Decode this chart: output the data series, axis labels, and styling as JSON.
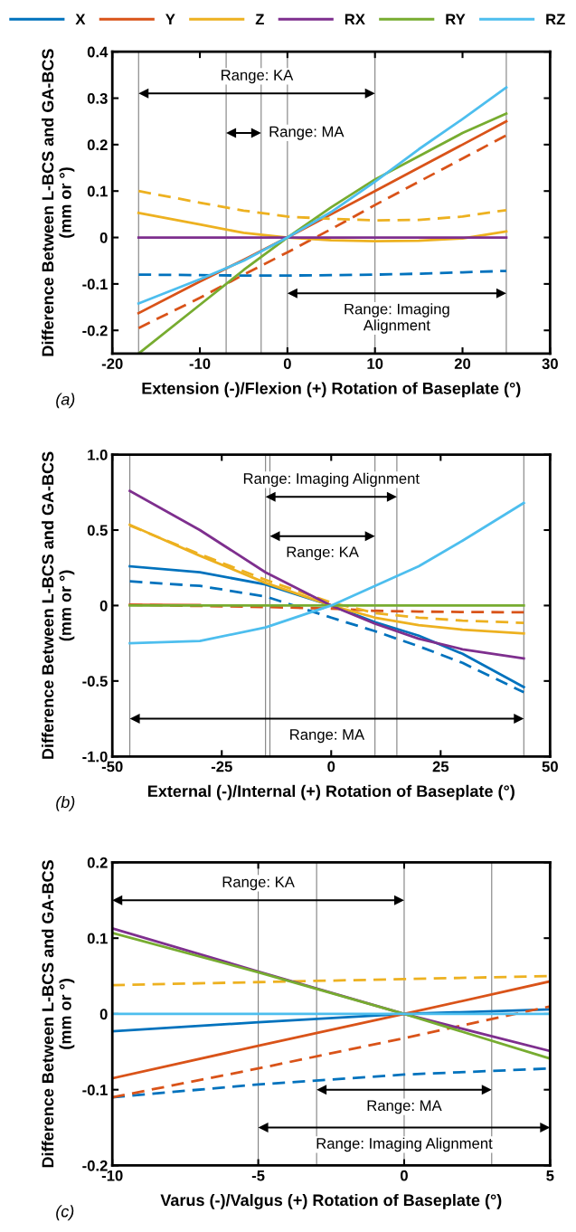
{
  "chart_data": [
    {
      "type": "line",
      "xlabel": "Extension (-)/Flexion (+) Rotation of Baseplate (°)",
      "ylabel": "Difference Between L-BCS and GA-BCS\n(mm or °)",
      "xlim": [
        -20,
        30
      ],
      "xticks": [
        -20,
        -10,
        0,
        10,
        20,
        30
      ],
      "ylim": [
        -0.25,
        0.4
      ],
      "yticks": [
        -0.2,
        -0.1,
        0,
        0.1,
        0.2,
        0.3,
        0.4
      ],
      "grid": false,
      "legend": "top",
      "annotations": [
        "(a)",
        "Range: KA",
        "Range: MA",
        "Range: Imaging\nAlignment"
      ],
      "x": [
        -17,
        -10,
        -5,
        0,
        5,
        10,
        15,
        20,
        25
      ],
      "series": [
        {
          "name": "X",
          "color": "#0072bd",
          "values": [
            null,
            null,
            null,
            null,
            null,
            null,
            null,
            null,
            null
          ]
        },
        {
          "color": "#0072bd",
          "line_style": "dashed",
          "values": [
            -0.08,
            -0.081,
            -0.082,
            -0.082,
            -0.081,
            -0.08,
            -0.078,
            -0.075,
            -0.072
          ]
        },
        {
          "name": "Y",
          "color": "#d95319",
          "values": [
            -0.163,
            -0.095,
            -0.048,
            0,
            0.05,
            0.1,
            0.15,
            0.2,
            0.25
          ]
        },
        {
          "color": "#d95319",
          "line_style": "dashed",
          "values": [
            -0.195,
            -0.13,
            -0.08,
            -0.032,
            0.018,
            0.07,
            0.12,
            0.17,
            0.22
          ]
        },
        {
          "name": "Z",
          "color": "#edb120",
          "values": [
            0.053,
            0.028,
            0.01,
            0,
            -0.006,
            -0.008,
            -0.007,
            -0.002,
            0.013
          ]
        },
        {
          "color": "#edb120",
          "line_style": "dashed",
          "values": [
            0.1,
            0.075,
            0.058,
            0.045,
            0.04,
            0.037,
            0.038,
            0.045,
            0.059
          ]
        },
        {
          "name": "RX",
          "color": "#7e2f8e",
          "values": [
            0,
            0,
            0,
            0,
            0,
            0,
            0,
            0,
            0
          ]
        },
        {
          "name": "RY",
          "color": "#77ac30",
          "values": [
            -0.25,
            -0.145,
            -0.07,
            0,
            0.065,
            0.125,
            0.175,
            0.225,
            0.267
          ]
        },
        {
          "name": "RZ",
          "color": "#4dbeee",
          "values": [
            -0.142,
            -0.09,
            -0.05,
            0,
            0.055,
            0.12,
            0.19,
            0.255,
            0.323
          ]
        }
      ],
      "ref_lines": [
        {
          "axis": "x",
          "value": -17,
          "color": "#808080"
        },
        {
          "axis": "x",
          "value": -7,
          "color": "#808080"
        },
        {
          "axis": "x",
          "value": -3,
          "color": "#808080"
        },
        {
          "axis": "x",
          "value": 0,
          "color": "#808080"
        },
        {
          "axis": "x",
          "value": 10,
          "color": "#808080"
        },
        {
          "axis": "x",
          "value": 25,
          "color": "#808080"
        }
      ],
      "tick_labels": true
    },
    {
      "type": "line",
      "xlabel": "External (-)/Internal (+) Rotation of Baseplate (°)",
      "ylabel": "Difference Between L-BCS and GA-BCS\n(mm or °)",
      "xlim": [
        -50,
        50
      ],
      "xticks": [
        -50,
        -25,
        0,
        25,
        50
      ],
      "ylim": [
        -1,
        1
      ],
      "yticks": [
        {
          "value": -1,
          "label": "-1.0"
        },
        -0.5,
        0,
        0.5,
        {
          "value": 1,
          "label": "1.0"
        }
      ],
      "grid": false,
      "annotations": [
        "(b)",
        "Range: Imaging Alignment",
        "Range: KA",
        "Range: MA"
      ],
      "x": [
        -46,
        -30,
        -15,
        0,
        10,
        20,
        30,
        44
      ],
      "series": [
        {
          "color": "#0072bd",
          "values": [
            0.26,
            0.22,
            0.14,
            0,
            -0.11,
            -0.2,
            -0.32,
            -0.54
          ]
        },
        {
          "color": "#0072bd",
          "line_style": "dashed",
          "values": [
            0.16,
            0.13,
            0.06,
            -0.08,
            -0.17,
            -0.27,
            -0.38,
            -0.575
          ]
        },
        {
          "color": "#d95319",
          "values": [
            0.005,
            0.003,
            null,
            null,
            null,
            null,
            null,
            null
          ]
        },
        {
          "color": "#d95319",
          "line_style": "dashed",
          "values": [
            0.005,
            -0.003,
            -0.01,
            -0.02,
            -0.035,
            -0.04,
            -0.043,
            -0.045
          ]
        },
        {
          "color": "#edb120",
          "values": [
            0.535,
            0.33,
            0.15,
            0,
            -0.08,
            -0.13,
            -0.16,
            -0.185
          ]
        },
        {
          "color": "#edb120",
          "line_style": "dashed",
          "values": [
            0.53,
            0.34,
            0.17,
            0.02,
            -0.05,
            -0.08,
            -0.1,
            -0.115
          ]
        },
        {
          "color": "#7e2f8e",
          "values": [
            0.76,
            0.5,
            0.22,
            0,
            -0.12,
            -0.22,
            -0.29,
            -0.35
          ]
        },
        {
          "color": "#77ac30",
          "values": [
            0,
            0,
            0,
            0,
            0,
            0,
            0,
            0
          ]
        },
        {
          "color": "#4dbeee",
          "values": [
            -0.25,
            -0.235,
            -0.145,
            0,
            0.13,
            0.26,
            0.43,
            0.68
          ]
        }
      ],
      "ref_lines": [
        {
          "axis": "x",
          "value": -46,
          "color": "#808080"
        },
        {
          "axis": "x",
          "value": -15,
          "color": "#808080"
        },
        {
          "axis": "x",
          "value": -14,
          "color": "#808080"
        },
        {
          "axis": "x",
          "value": 10,
          "color": "#808080"
        },
        {
          "axis": "x",
          "value": 15,
          "color": "#808080"
        },
        {
          "axis": "x",
          "value": 44,
          "color": "#808080"
        }
      ],
      "tick_labels": true
    },
    {
      "type": "line",
      "xlabel": "Varus (-)/Valgus (+) Rotation of Baseplate (°)",
      "ylabel": "Difference Between L-BCS and GA-BCS\n(mm or °)",
      "xlim": [
        -10,
        5
      ],
      "xticks": [
        -10,
        -5,
        0,
        5
      ],
      "ylim": [
        -0.2,
        0.2
      ],
      "yticks": [
        -0.2,
        -0.1,
        0,
        0.1,
        0.2
      ],
      "grid": false,
      "annotations": [
        "(c)",
        "Range: KA",
        "Range: MA",
        "Range: Imaging Alignment"
      ],
      "x": [
        -10,
        -5,
        0,
        5
      ],
      "series": [
        {
          "color": "#0072bd",
          "values": [
            -0.023,
            -0.011,
            0,
            0.006
          ]
        },
        {
          "color": "#0072bd",
          "line_style": "dashed",
          "values": [
            -0.11,
            -0.093,
            -0.08,
            -0.072
          ]
        },
        {
          "color": "#d95319",
          "values": [
            -0.085,
            -0.042,
            0,
            0.043
          ]
        },
        {
          "color": "#d95319",
          "line_style": "dashed",
          "values": [
            -0.11,
            -0.072,
            -0.032,
            0.01
          ]
        },
        {
          "color": "#edb120",
          "line_style": "dashed",
          "values": [
            0.038,
            0.042,
            0.046,
            0.05
          ]
        },
        {
          "color": "#7e2f8e",
          "values": [
            0.113,
            0.056,
            0,
            -0.049
          ]
        },
        {
          "color": "#77ac30",
          "values": [
            0.107,
            0.055,
            0,
            -0.059
          ]
        },
        {
          "color": "#4dbeee",
          "values": [
            0,
            0,
            0,
            0
          ]
        }
      ],
      "ref_lines": [
        {
          "axis": "x",
          "value": -5,
          "color": "#808080"
        },
        {
          "axis": "x",
          "value": -3,
          "color": "#808080"
        },
        {
          "axis": "x",
          "value": 0,
          "color": "#808080"
        },
        {
          "axis": "x",
          "value": 3,
          "color": "#808080"
        }
      ]
    }
  ]
}
